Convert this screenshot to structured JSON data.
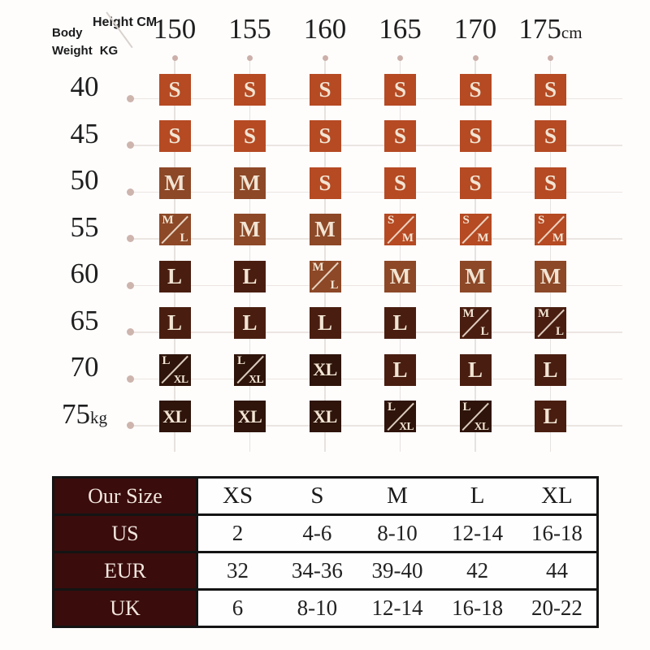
{
  "corner": {
    "body_label": "Body",
    "weight_label": "Weight",
    "weight_unit_label": "KG",
    "height_label": "Height CM"
  },
  "grid": {
    "heights": [
      "150",
      "155",
      "160",
      "165",
      "170",
      "175"
    ],
    "height_unit": "cm",
    "weight_unit": "kg",
    "tone_colors": {
      "s": "#b54a23",
      "m": "#8c4827",
      "l": "#491e10",
      "xl": "#2e140b"
    },
    "rows": [
      {
        "weight": "40",
        "cells": [
          {
            "label": "S",
            "tone": "s"
          },
          {
            "label": "S",
            "tone": "s"
          },
          {
            "label": "S",
            "tone": "s"
          },
          {
            "label": "S",
            "tone": "s"
          },
          {
            "label": "S",
            "tone": "s"
          },
          {
            "label": "S",
            "tone": "s"
          }
        ]
      },
      {
        "weight": "45",
        "cells": [
          {
            "label": "S",
            "tone": "s"
          },
          {
            "label": "S",
            "tone": "s"
          },
          {
            "label": "S",
            "tone": "s"
          },
          {
            "label": "S",
            "tone": "s"
          },
          {
            "label": "S",
            "tone": "s"
          },
          {
            "label": "S",
            "tone": "s"
          }
        ]
      },
      {
        "weight": "50",
        "cells": [
          {
            "label": "M",
            "tone": "m"
          },
          {
            "label": "M",
            "tone": "m"
          },
          {
            "label": "S",
            "tone": "s"
          },
          {
            "label": "S",
            "tone": "s"
          },
          {
            "label": "S",
            "tone": "s"
          },
          {
            "label": "S",
            "tone": "s"
          }
        ]
      },
      {
        "weight": "55",
        "cells": [
          {
            "label": "M/L",
            "parts": [
              "M",
              "L"
            ],
            "tone": "m"
          },
          {
            "label": "M",
            "tone": "m"
          },
          {
            "label": "M",
            "tone": "m"
          },
          {
            "label": "S/M",
            "parts": [
              "S",
              "M"
            ],
            "tone": "s"
          },
          {
            "label": "S/M",
            "parts": [
              "S",
              "M"
            ],
            "tone": "s"
          },
          {
            "label": "S/M",
            "parts": [
              "S",
              "M"
            ],
            "tone": "s"
          }
        ]
      },
      {
        "weight": "60",
        "cells": [
          {
            "label": "L",
            "tone": "l"
          },
          {
            "label": "L",
            "tone": "l"
          },
          {
            "label": "M/L",
            "parts": [
              "M",
              "L"
            ],
            "tone": "m"
          },
          {
            "label": "M",
            "tone": "m"
          },
          {
            "label": "M",
            "tone": "m"
          },
          {
            "label": "M",
            "tone": "m"
          }
        ]
      },
      {
        "weight": "65",
        "cells": [
          {
            "label": "L",
            "tone": "l"
          },
          {
            "label": "L",
            "tone": "l"
          },
          {
            "label": "L",
            "tone": "l"
          },
          {
            "label": "L",
            "tone": "l"
          },
          {
            "label": "M/L",
            "parts": [
              "M",
              "L"
            ],
            "tone": "l"
          },
          {
            "label": "M/L",
            "parts": [
              "M",
              "L"
            ],
            "tone": "l"
          }
        ]
      },
      {
        "weight": "70",
        "cells": [
          {
            "label": "L/XL",
            "parts": [
              "L",
              "XL"
            ],
            "tone": "xl"
          },
          {
            "label": "L/XL",
            "parts": [
              "L",
              "XL"
            ],
            "tone": "xl"
          },
          {
            "label": "XL",
            "tone": "xl"
          },
          {
            "label": "L",
            "tone": "l"
          },
          {
            "label": "L",
            "tone": "l"
          },
          {
            "label": "L",
            "tone": "l"
          }
        ]
      },
      {
        "weight": "75",
        "unit": "kg",
        "cells": [
          {
            "label": "XL",
            "tone": "xl"
          },
          {
            "label": "XL",
            "tone": "xl"
          },
          {
            "label": "XL",
            "tone": "xl"
          },
          {
            "label": "L/XL",
            "parts": [
              "L",
              "XL"
            ],
            "tone": "xl"
          },
          {
            "label": "L/XL",
            "parts": [
              "L",
              "XL"
            ],
            "tone": "xl"
          },
          {
            "label": "L",
            "tone": "l"
          }
        ]
      }
    ]
  },
  "table": {
    "corner_label": "Our Size",
    "size_headers": [
      "XS",
      "S",
      "M",
      "L",
      "XL"
    ],
    "rows": [
      {
        "label": "US",
        "values": [
          "2",
          "4-6",
          "8-10",
          "12-14",
          "16-18"
        ]
      },
      {
        "label": "EUR",
        "values": [
          "32",
          "34-36",
          "39-40",
          "42",
          "44"
        ]
      },
      {
        "label": "UK",
        "values": [
          "6",
          "8-10",
          "12-14",
          "16-18",
          "20-22"
        ]
      }
    ],
    "colors": {
      "label_bg": "#3a0c0c",
      "label_text": "#f2e6dd",
      "border": "#141414"
    }
  },
  "chart_data": [
    {
      "type": "heatmap",
      "title": "Recommended size by body height and weight",
      "xlabel": "Height CM",
      "ylabel": "Body Weight KG",
      "x": [
        150,
        155,
        160,
        165,
        170,
        175
      ],
      "y": [
        40,
        45,
        50,
        55,
        60,
        65,
        70,
        75
      ],
      "values": [
        [
          "S",
          "S",
          "S",
          "S",
          "S",
          "S"
        ],
        [
          "S",
          "S",
          "S",
          "S",
          "S",
          "S"
        ],
        [
          "M",
          "M",
          "S",
          "S",
          "S",
          "S"
        ],
        [
          "M/L",
          "M",
          "M",
          "S/M",
          "S/M",
          "S/M"
        ],
        [
          "L",
          "L",
          "M/L",
          "M",
          "M",
          "M"
        ],
        [
          "L",
          "L",
          "L",
          "L",
          "M/L",
          "M/L"
        ],
        [
          "L/XL",
          "L/XL",
          "XL",
          "L",
          "L",
          "L"
        ],
        [
          "XL",
          "XL",
          "XL",
          "L/XL",
          "L/XL",
          "L"
        ]
      ],
      "legend_position": "none",
      "grid": true
    },
    {
      "type": "table",
      "columns": [
        "Our Size",
        "XS",
        "S",
        "M",
        "L",
        "XL"
      ],
      "rows": [
        [
          "US",
          "2",
          "4-6",
          "8-10",
          "12-14",
          "16-18"
        ],
        [
          "EUR",
          "32",
          "34-36",
          "39-40",
          "42",
          "44"
        ],
        [
          "UK",
          "6",
          "8-10",
          "12-14",
          "16-18",
          "20-22"
        ]
      ]
    }
  ]
}
